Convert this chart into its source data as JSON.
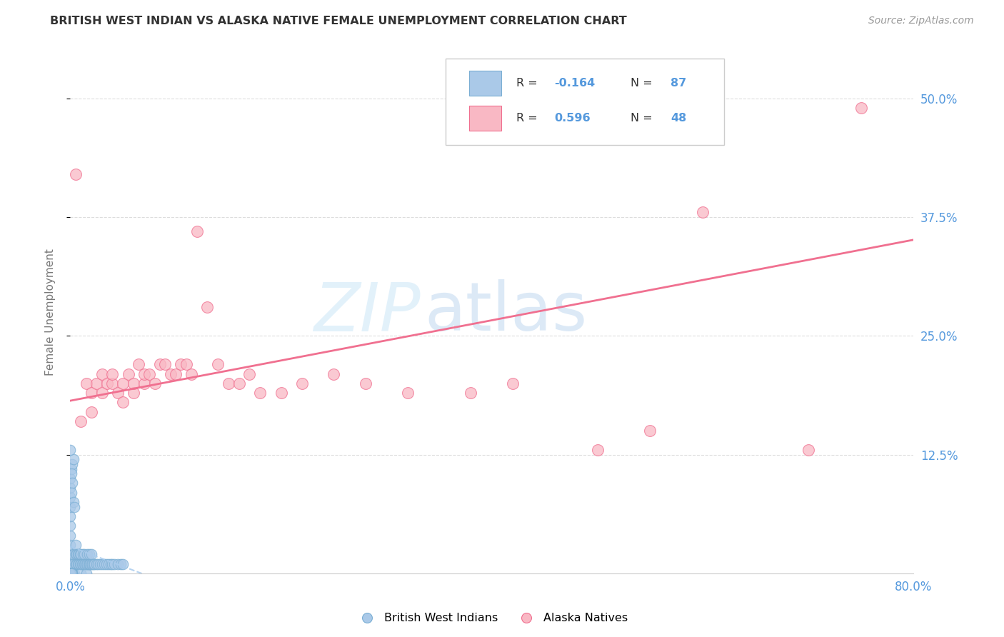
{
  "title": "BRITISH WEST INDIAN VS ALASKA NATIVE FEMALE UNEMPLOYMENT CORRELATION CHART",
  "source": "Source: ZipAtlas.com",
  "ylabel": "Female Unemployment",
  "xlim": [
    0.0,
    0.8
  ],
  "ylim": [
    0.0,
    0.55
  ],
  "ytick_positions": [
    0.125,
    0.25,
    0.375,
    0.5
  ],
  "ytick_labels": [
    "12.5%",
    "25.0%",
    "37.5%",
    "50.0%"
  ],
  "xtick_positions": [
    0.0,
    0.1,
    0.2,
    0.3,
    0.4,
    0.5,
    0.6,
    0.7,
    0.8
  ],
  "xtick_labels": [
    "0.0%",
    "",
    "",
    "",
    "",
    "",
    "",
    "",
    "80.0%"
  ],
  "legend_r_blue": "-0.164",
  "legend_n_blue": "87",
  "legend_r_pink": "0.596",
  "legend_n_pink": "48",
  "watermark_zip": "ZIP",
  "watermark_atlas": "atlas",
  "blue_color": "#aac9e8",
  "blue_edge": "#7bafd4",
  "pink_color": "#f9b8c4",
  "pink_edge": "#f07090",
  "blue_line_color": "#aaccee",
  "pink_line_color": "#f07090",
  "grid_color": "#dddddd",
  "axis_label_color": "#5599dd",
  "title_color": "#333333",
  "source_color": "#999999",
  "ylabel_color": "#777777",
  "legend_text_color": "#333333",
  "bwi_x": [
    0.0,
    0.0,
    0.0,
    0.0,
    0.0,
    0.0,
    0.0,
    0.0,
    0.0,
    0.0,
    0.002,
    0.003,
    0.003,
    0.004,
    0.005,
    0.005,
    0.005,
    0.006,
    0.006,
    0.007,
    0.007,
    0.008,
    0.008,
    0.009,
    0.009,
    0.01,
    0.01,
    0.01,
    0.011,
    0.012,
    0.012,
    0.013,
    0.013,
    0.014,
    0.015,
    0.015,
    0.016,
    0.016,
    0.017,
    0.018,
    0.018,
    0.019,
    0.02,
    0.02,
    0.021,
    0.022,
    0.023,
    0.025,
    0.026,
    0.028,
    0.03,
    0.032,
    0.034,
    0.036,
    0.038,
    0.04,
    0.042,
    0.045,
    0.048,
    0.05,
    0.0,
    0.001,
    0.002,
    0.003,
    0.001,
    0.002,
    0.001,
    0.0,
    0.003,
    0.004,
    0.0,
    0.001,
    0.0,
    0.002,
    0.001,
    0.0,
    0.001,
    0.002,
    0.0,
    0.001,
    0.0,
    0.001,
    0.002,
    0.0,
    0.001,
    0.0,
    0.001
  ],
  "bwi_y": [
    0.0,
    0.01,
    0.02,
    0.03,
    0.04,
    0.05,
    0.06,
    0.07,
    0.08,
    0.09,
    0.0,
    0.01,
    0.02,
    0.0,
    0.01,
    0.02,
    0.03,
    0.01,
    0.02,
    0.01,
    0.02,
    0.01,
    0.02,
    0.01,
    0.02,
    0.0,
    0.01,
    0.02,
    0.01,
    0.01,
    0.02,
    0.01,
    0.02,
    0.01,
    0.0,
    0.01,
    0.01,
    0.02,
    0.01,
    0.01,
    0.02,
    0.01,
    0.01,
    0.02,
    0.01,
    0.01,
    0.01,
    0.01,
    0.01,
    0.01,
    0.01,
    0.01,
    0.01,
    0.01,
    0.01,
    0.01,
    0.01,
    0.01,
    0.01,
    0.01,
    0.1,
    0.11,
    0.115,
    0.12,
    0.105,
    0.095,
    0.085,
    0.13,
    0.075,
    0.07,
    0.0,
    0.0,
    0.0,
    0.0,
    0.0,
    0.0,
    0.0,
    0.0,
    0.0,
    0.0,
    0.0,
    0.0,
    0.0,
    0.0,
    0.0,
    0.0,
    0.0
  ],
  "alaska_x": [
    0.005,
    0.01,
    0.015,
    0.02,
    0.02,
    0.025,
    0.03,
    0.03,
    0.035,
    0.04,
    0.04,
    0.045,
    0.05,
    0.05,
    0.055,
    0.06,
    0.06,
    0.065,
    0.07,
    0.07,
    0.075,
    0.08,
    0.085,
    0.09,
    0.095,
    0.1,
    0.105,
    0.11,
    0.115,
    0.12,
    0.13,
    0.14,
    0.15,
    0.16,
    0.17,
    0.18,
    0.2,
    0.22,
    0.25,
    0.28,
    0.32,
    0.38,
    0.42,
    0.5,
    0.55,
    0.6,
    0.7,
    0.75
  ],
  "alaska_y": [
    0.42,
    0.16,
    0.2,
    0.17,
    0.19,
    0.2,
    0.19,
    0.21,
    0.2,
    0.2,
    0.21,
    0.19,
    0.18,
    0.2,
    0.21,
    0.19,
    0.2,
    0.22,
    0.2,
    0.21,
    0.21,
    0.2,
    0.22,
    0.22,
    0.21,
    0.21,
    0.22,
    0.22,
    0.21,
    0.36,
    0.28,
    0.22,
    0.2,
    0.2,
    0.21,
    0.19,
    0.19,
    0.2,
    0.21,
    0.2,
    0.19,
    0.19,
    0.2,
    0.13,
    0.15,
    0.38,
    0.13,
    0.49
  ]
}
